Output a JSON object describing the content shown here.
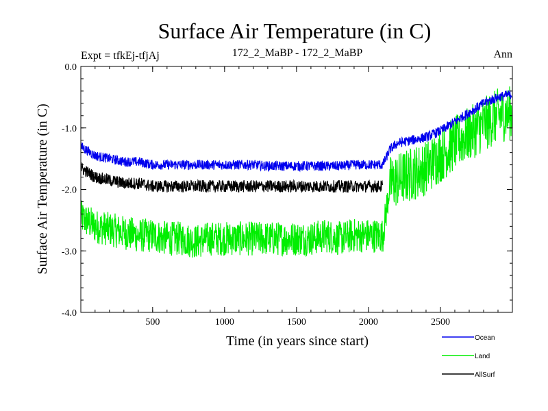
{
  "chart_data": {
    "type": "line",
    "title": "Surface Air Temperature (in C)",
    "subtitle_left": "Expt = tfkEj-tfjAj",
    "subtitle_center": "172_2_MaBP - 172_2_MaBP",
    "subtitle_right": "Ann",
    "xlabel": "Time (in years since start)",
    "ylabel": "Surface Air Temperature (in C)",
    "xlim": [
      1,
      3000
    ],
    "ylim": [
      -4.0,
      0.0
    ],
    "xticks": [
      500,
      1000,
      1500,
      2000,
      2500
    ],
    "yticks": [
      0.0,
      -1.0,
      -2.0,
      -3.0,
      -4.0
    ],
    "ytick_labels": [
      "0.0",
      "-1.0",
      "-2.0",
      "-3.0",
      "-4.0"
    ],
    "legend_position": "bottom-right, outside plot",
    "series": [
      {
        "name": "Land",
        "color": "#00ee00",
        "x": [
          1,
          100,
          200,
          300,
          400,
          500,
          600,
          700,
          800,
          900,
          1000,
          1100,
          1200,
          1300,
          1400,
          1500,
          1600,
          1700,
          1800,
          1900,
          2000,
          2100,
          2150,
          2200,
          2300,
          2400,
          2500,
          2600,
          2700,
          2800,
          2900,
          3000
        ],
        "values": [
          -2.45,
          -2.6,
          -2.65,
          -2.7,
          -2.75,
          -2.75,
          -2.8,
          -2.8,
          -2.85,
          -2.8,
          -2.8,
          -2.8,
          -2.8,
          -2.8,
          -2.8,
          -2.8,
          -2.8,
          -2.75,
          -2.8,
          -2.75,
          -2.75,
          -2.75,
          -1.9,
          -1.85,
          -1.75,
          -1.65,
          -1.45,
          -1.25,
          -1.1,
          -0.95,
          -0.8,
          -0.75
        ]
      },
      {
        "name": "Ocean",
        "color": "#0000ee",
        "x": [
          1,
          100,
          200,
          300,
          400,
          500,
          600,
          700,
          800,
          900,
          1000,
          1100,
          1200,
          1300,
          1400,
          1500,
          1600,
          1700,
          1800,
          1900,
          2000,
          2100,
          2150,
          2200,
          2300,
          2400,
          2500,
          2600,
          2700,
          2800,
          2900,
          3000
        ],
        "values": [
          -1.3,
          -1.45,
          -1.5,
          -1.55,
          -1.55,
          -1.6,
          -1.6,
          -1.6,
          -1.6,
          -1.6,
          -1.6,
          -1.6,
          -1.6,
          -1.62,
          -1.62,
          -1.62,
          -1.62,
          -1.62,
          -1.62,
          -1.6,
          -1.6,
          -1.6,
          -1.35,
          -1.25,
          -1.2,
          -1.15,
          -1.05,
          -0.9,
          -0.75,
          -0.6,
          -0.5,
          -0.45
        ]
      },
      {
        "name": "AllSurf",
        "color": "#000000",
        "x": [
          1,
          100,
          200,
          300,
          400,
          500,
          600,
          700,
          800,
          900,
          1000,
          1100,
          1200,
          1300,
          1400,
          1500,
          1600,
          1700,
          1800,
          1900,
          2000,
          2100
        ],
        "values": [
          -1.65,
          -1.8,
          -1.85,
          -1.9,
          -1.9,
          -1.95,
          -1.95,
          -1.95,
          -1.95,
          -1.95,
          -1.95,
          -1.95,
          -1.95,
          -1.95,
          -1.95,
          -1.95,
          -1.95,
          -1.95,
          -1.95,
          -1.95,
          -1.95,
          -1.95
        ]
      }
    ],
    "legend": [
      {
        "label": "Ocean",
        "color": "#0000ee"
      },
      {
        "label": "Land",
        "color": "#00ee00"
      },
      {
        "label": "AllSurf",
        "color": "#000000"
      }
    ]
  }
}
